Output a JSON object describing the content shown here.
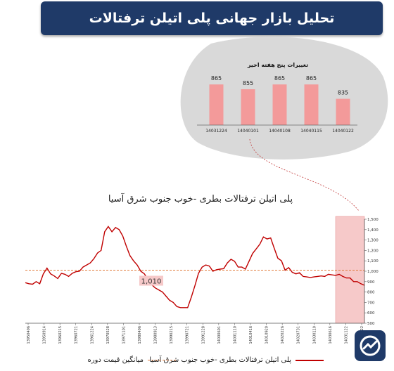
{
  "header": {
    "title": "تحلیل بازار جهانی پلی اتیلن ترفتالات"
  },
  "subtitle": "پلی اتیلن ترفتالات بطری -خوب جنوب شرق آسیا",
  "legend": {
    "series_label": "پلی اتیلن ترفتالات بطری -خوب جنوب شرق آسیا",
    "avg_label": "میانگین قیمت دوره"
  },
  "chart_data": [
    {
      "type": "bar",
      "title": "تغییرات پنج هفته اخیر",
      "categories": [
        "14031224",
        "14040101",
        "14040108",
        "14040115",
        "14040122"
      ],
      "values": [
        865,
        855,
        865,
        865,
        835
      ],
      "value_labels": [
        "865",
        "855",
        "865",
        "865",
        "835"
      ],
      "ylim": [
        780,
        880
      ],
      "colors": {
        "bar": "#f39a9a",
        "bubble": "#d9d9d9"
      }
    },
    {
      "type": "line",
      "yticks": [
        "1,500",
        "1,400",
        "1,300",
        "1,200",
        "1,100",
        "1,000",
        "900",
        "800",
        "700",
        "600",
        "500"
      ],
      "ylim": [
        500,
        1500
      ],
      "x_labels": [
        "13950406",
        "13950914",
        "13960215",
        "13960721",
        "13961224",
        "13970528",
        "13971101",
        "13980406",
        "13980913",
        "13990215",
        "13990721",
        "13991228",
        "14000601",
        "14001110",
        "14010416",
        "14010920",
        "14020226",
        "14020731",
        "14030110",
        "14030616",
        "14031122",
        "14040122"
      ],
      "values": [
        890,
        880,
        875,
        900,
        880,
        975,
        1030,
        975,
        955,
        930,
        980,
        970,
        950,
        980,
        995,
        1000,
        1040,
        1060,
        1080,
        1120,
        1175,
        1200,
        1380,
        1430,
        1380,
        1420,
        1400,
        1340,
        1240,
        1150,
        1100,
        1060,
        1000,
        975,
        920,
        870,
        840,
        820,
        800,
        760,
        720,
        700,
        660,
        650,
        650,
        650,
        750,
        860,
        980,
        1040,
        1060,
        1050,
        1000,
        1015,
        1020,
        1025,
        1080,
        1115,
        1095,
        1040,
        1040,
        1020,
        1095,
        1170,
        1215,
        1260,
        1330,
        1310,
        1320,
        1220,
        1125,
        1100,
        1010,
        1035,
        990,
        975,
        985,
        950,
        945,
        940,
        945,
        950,
        955,
        950,
        970,
        965,
        960,
        970,
        950,
        935,
        935,
        900,
        900,
        880,
        865
      ],
      "average": 1010,
      "average_label": "1,010",
      "highlight_from_index": 86,
      "colors": {
        "line": "#c00000",
        "average": "#e07a3a",
        "highlight": "#f6c9c9"
      }
    }
  ]
}
